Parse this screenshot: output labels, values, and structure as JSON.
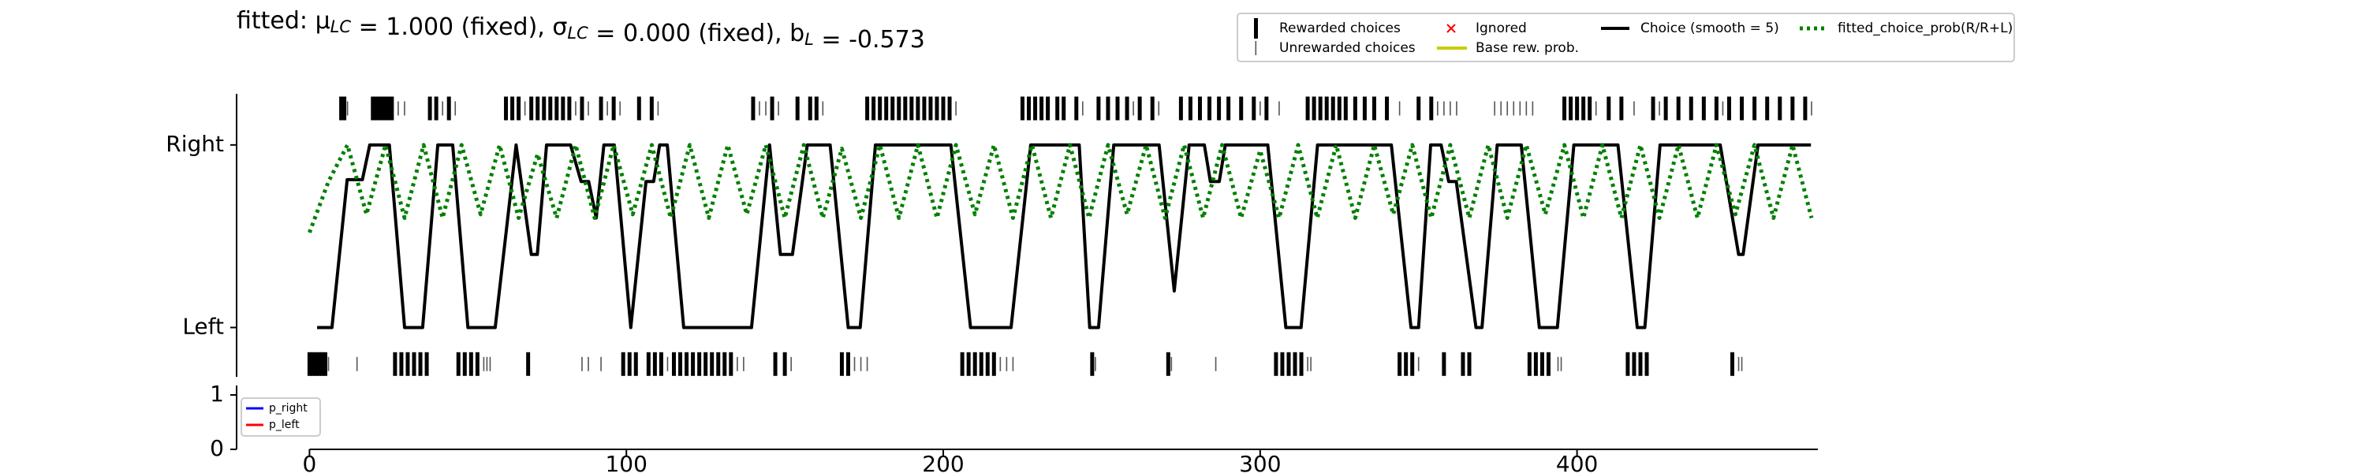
{
  "chart_data": [
    {
      "type": "line",
      "title": [
        {
          "text": "fitted: μ",
          "sub": "LC"
        },
        {
          "text": " = 1.000 (fixed), σ",
          "sub": "LC"
        },
        {
          "text": " = 0.000 (fixed), b",
          "sub": "L"
        },
        {
          "text": " = -0.573"
        }
      ],
      "xlim": [
        -23,
        476
      ],
      "ylim": [
        -0.27,
        1.28
      ],
      "yticks": [
        {
          "value": 1,
          "label": "Right"
        },
        {
          "value": 0,
          "label": "Left"
        }
      ],
      "series": [
        {
          "name": "Choice (smooth = 5)",
          "color": "#000000",
          "style": "solid",
          "x": [
            2.4,
            7.1,
            11.9,
            16.7,
            19,
            25.2,
            30,
            35.7,
            40.5,
            45.2,
            50,
            58.6,
            65.2,
            70,
            71.9,
            74.8,
            82.4,
            85.7,
            88.1,
            90.5,
            92.9,
            96.2,
            101.4,
            106.2,
            108.6,
            110.5,
            112.9,
            118.1,
            139.5,
            145.2,
            148.6,
            152.4,
            157.1,
            164.3,
            170,
            173.8,
            178.6,
            202.4,
            208.6,
            221.4,
            227.6,
            242.9,
            246.2,
            249,
            253.8,
            268.1,
            272.9,
            277.6,
            282.4,
            284.3,
            287.1,
            289,
            302.4,
            308.1,
            312.9,
            318.1,
            341.4,
            347.6,
            350,
            353.8,
            357.1,
            359.5,
            361.9,
            368.1,
            370,
            374.8,
            382.4,
            388.1,
            393.8,
            399,
            412.9,
            419,
            421.4,
            426.2,
            445.2,
            451,
            452.4,
            457.1,
            473.8
          ],
          "values": [
            0,
            0,
            0.81,
            0.81,
            1,
            1,
            0,
            0,
            1,
            1,
            0,
            0,
            1,
            0.4,
            0.4,
            1,
            1,
            0.8,
            0.8,
            0.6,
            1,
            1,
            0,
            0.8,
            0.8,
            1,
            1,
            0,
            0,
            1,
            0.4,
            0.4,
            1,
            1,
            0,
            0,
            1,
            1,
            0,
            0,
            1,
            1,
            0,
            0,
            1,
            1,
            0.2,
            1,
            1,
            0.8,
            0.8,
            1,
            1,
            0,
            0,
            1,
            1,
            0,
            0,
            1,
            1,
            0.8,
            0.8,
            0,
            0,
            1,
            1,
            0,
            0,
            1,
            1,
            0,
            0,
            1,
            1,
            0.4,
            0.4,
            1,
            1
          ]
        },
        {
          "name": "fitted_choice_prob(R/R+L)",
          "color": "#008000",
          "style": "dotted",
          "x": [
            0,
            6,
            12,
            18,
            24,
            30,
            36,
            42,
            48,
            54,
            60,
            66,
            72,
            78,
            84,
            90,
            96,
            102,
            108,
            114,
            120,
            126,
            132,
            138,
            144,
            150,
            156,
            162,
            168,
            174,
            180,
            186,
            192,
            198,
            204,
            210,
            216,
            222,
            228,
            234,
            240,
            246,
            252,
            258,
            264,
            270,
            276,
            282,
            288,
            294,
            300,
            306,
            312,
            318,
            324,
            330,
            336,
            342,
            348,
            354,
            360,
            366,
            372,
            378,
            384,
            390,
            396,
            402,
            408,
            414,
            420,
            426,
            432,
            438,
            444,
            450,
            456,
            462,
            468,
            474
          ],
          "values": [
            0.52,
            0.8,
            1,
            0.62,
            1,
            0.6,
            1,
            0.6,
            1,
            0.62,
            1,
            0.6,
            0.95,
            0.6,
            1,
            0.6,
            1,
            0.62,
            1,
            0.6,
            1,
            0.6,
            1,
            0.62,
            1,
            0.6,
            1,
            0.6,
            0.98,
            0.6,
            1,
            0.6,
            1,
            0.6,
            1,
            0.62,
            1,
            0.6,
            1,
            0.6,
            1,
            0.6,
            1,
            0.62,
            1,
            0.6,
            1,
            0.6,
            1,
            0.6,
            0.97,
            0.6,
            1,
            0.6,
            1,
            0.6,
            1,
            0.62,
            1,
            0.6,
            1,
            0.6,
            1,
            0.6,
            1,
            0.62,
            1,
            0.6,
            1,
            0.6,
            1,
            0.6,
            1,
            0.6,
            1,
            0.62,
            1,
            0.6,
            1,
            0.6
          ]
        }
      ],
      "events": [
        {
          "name": "Rewarded choices",
          "color": "#000000",
          "y_right": 1.2,
          "y_left": -0.2,
          "right": [
            10,
            11,
            20,
            21,
            22,
            23,
            24,
            25,
            26,
            38,
            40,
            44,
            62,
            64,
            66,
            70,
            72,
            74,
            76,
            78,
            80,
            82,
            86,
            92,
            96,
            104,
            108,
            140,
            146,
            154,
            158,
            160,
            176,
            178,
            180,
            182,
            184,
            186,
            188,
            190,
            192,
            194,
            196,
            198,
            200,
            202,
            225,
            227,
            229,
            231,
            233,
            236,
            238,
            242,
            249,
            252,
            255,
            258,
            262,
            266,
            275,
            278,
            281,
            284,
            287,
            290,
            294,
            298,
            302,
            315,
            317,
            319,
            321,
            323,
            325,
            327,
            330,
            333,
            336,
            340,
            350,
            354,
            396,
            398,
            400,
            402,
            404,
            410,
            414,
            424,
            428,
            432,
            436,
            440,
            444,
            448,
            452,
            456,
            460,
            464,
            468,
            472
          ],
          "left": [
            0,
            1,
            2,
            3,
            4,
            5,
            27,
            29,
            31,
            33,
            35,
            37,
            47,
            49,
            51,
            53,
            69,
            99,
            101,
            103,
            107,
            109,
            111,
            115,
            117,
            119,
            121,
            123,
            125,
            127,
            129,
            131,
            133,
            147,
            150,
            168,
            170,
            206,
            208,
            210,
            212,
            214,
            216,
            247,
            271,
            305,
            307,
            309,
            311,
            313,
            344,
            346,
            348,
            358,
            364,
            366,
            385,
            387,
            389,
            391,
            416,
            418,
            420,
            422,
            449
          ]
        },
        {
          "name": "Unrewarded choices",
          "color": "#555555",
          "y_right": 1.2,
          "y_left": -0.2,
          "right": [
            12,
            28,
            30,
            42,
            46,
            68,
            84,
            88,
            94,
            98,
            110,
            142,
            144,
            148,
            162,
            204,
            244,
            260,
            268,
            300,
            306,
            344,
            356,
            358,
            360,
            362,
            374,
            376,
            378,
            380,
            382,
            384,
            386,
            406,
            418,
            426,
            446,
            474
          ],
          "left": [
            6,
            15,
            55,
            56,
            57,
            86,
            88,
            92,
            113,
            135,
            137,
            152,
            172,
            174,
            176,
            218,
            220,
            222,
            248,
            272,
            286,
            315,
            316,
            350,
            394,
            395,
            451,
            452
          ]
        }
      ],
      "legend_extra": [
        {
          "name": "Ignored",
          "color": "#ff0000"
        },
        {
          "name": "Base rew. prob.",
          "color": "#cccc00"
        }
      ]
    },
    {
      "type": "line",
      "xlim": [
        -23,
        476
      ],
      "ylim": [
        0,
        1
      ],
      "yticks": [
        1,
        0
      ],
      "xticks": [
        0,
        100,
        200,
        300,
        400
      ],
      "series": [
        {
          "name": "p_right",
          "color": "#0000ff"
        },
        {
          "name": "p_left",
          "color": "#ff0000"
        }
      ]
    }
  ]
}
